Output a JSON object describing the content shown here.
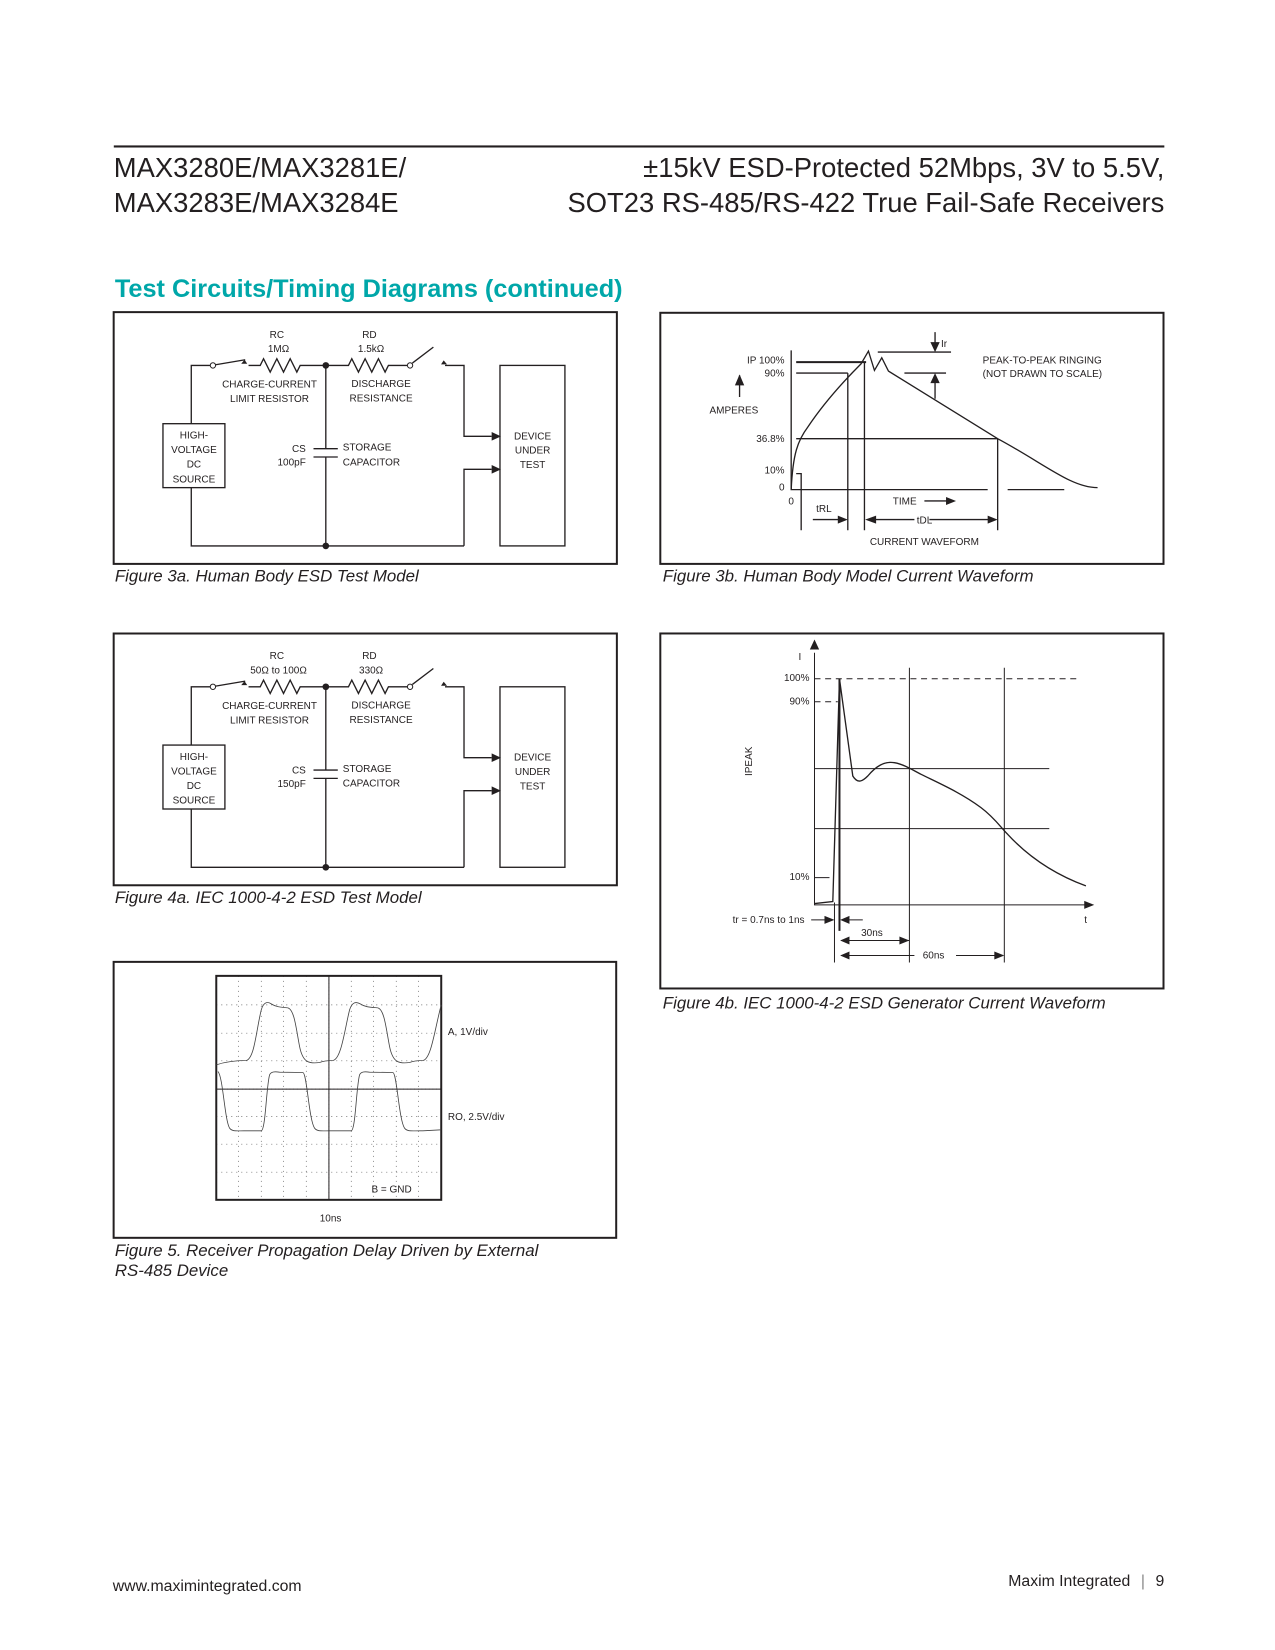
{
  "header": {
    "left_line1": "MAX3280E/MAX3281E/",
    "left_line2": "MAX3283E/MAX3284E",
    "right_line1": "±15kV ESD-Protected 52Mbps, 3V to 5.5V,",
    "right_line2": "SOT23 RS-485/RS-422 True Fail-Safe Receivers"
  },
  "section_title": "Test Circuits/Timing Diagrams (continued)",
  "fig3a": {
    "caption": "Figure 3a. Human Body ESD Test Model",
    "rc_label": "RC",
    "rc_value": "1MΩ",
    "rd_label": "RD",
    "rd_value": "1.5kΩ",
    "rc_desc1": "CHARGE-CURRENT",
    "rc_desc2": "LIMIT RESISTOR",
    "rd_desc1": "DISCHARGE",
    "rd_desc2": "RESISTANCE",
    "src1": "HIGH-",
    "src2": "VOLTAGE",
    "src3": "DC",
    "src4": "SOURCE",
    "cs_label": "CS",
    "cs_value": "100pF",
    "cap1": "STORAGE",
    "cap2": "CAPACITOR",
    "dut1": "DEVICE",
    "dut2": "UNDER",
    "dut3": "TEST"
  },
  "fig3b": {
    "caption": "Figure 3b. Human Body Model Current Waveform",
    "ip": "IP 100%",
    "p90": "90%",
    "amperes": "AMPERES",
    "p368": "36.8%",
    "p10": "10%",
    "zero_y": "0",
    "zero_x": "0",
    "ir": "Ir",
    "ringing1": "PEAK-TO-PEAK RINGING",
    "ringing2": "(NOT DRAWN TO SCALE)",
    "trl": "tRL",
    "time": "TIME",
    "tdl": "tDL",
    "waveform": "CURRENT WAVEFORM"
  },
  "fig4a": {
    "caption": "Figure 4a. IEC 1000-4-2 ESD Test Model",
    "rc_label": "RC",
    "rc_value": "50Ω to 100Ω",
    "rd_label": "RD",
    "rd_value": "330Ω",
    "rc_desc1": "CHARGE-CURRENT",
    "rc_desc2": "LIMIT RESISTOR",
    "rd_desc1": "DISCHARGE",
    "rd_desc2": "RESISTANCE",
    "src1": "HIGH-",
    "src2": "VOLTAGE",
    "src3": "DC",
    "src4": "SOURCE",
    "cs_label": "CS",
    "cs_value": "150pF",
    "cap1": "STORAGE",
    "cap2": "CAPACITOR",
    "dut1": "DEVICE",
    "dut2": "UNDER",
    "dut3": "TEST"
  },
  "fig4b": {
    "caption": "Figure 4b. IEC 1000-4-2 ESD Generator Current Waveform",
    "i": "I",
    "p100": "100%",
    "p90": "90%",
    "p10": "10%",
    "ipeak": "IPEAK",
    "tr": "tr = 0.7ns to 1ns",
    "t": "t",
    "ns30": "30ns",
    "ns60": "60ns"
  },
  "fig5": {
    "caption_line1": "Figure 5. Receiver Propagation Delay Driven by External",
    "caption_line2": "RS-485 Device",
    "ch_a": "A, 1V/div",
    "ch_ro": "RO, 2.5V/div",
    "ch_b": "B = GND",
    "timebase": "10ns"
  },
  "footer": {
    "url": "www.maximintegrated.com",
    "company": "Maxim Integrated",
    "separator": "|",
    "page": "9"
  },
  "colors": {
    "accent": "#00a7a9",
    "text": "#231f20"
  }
}
